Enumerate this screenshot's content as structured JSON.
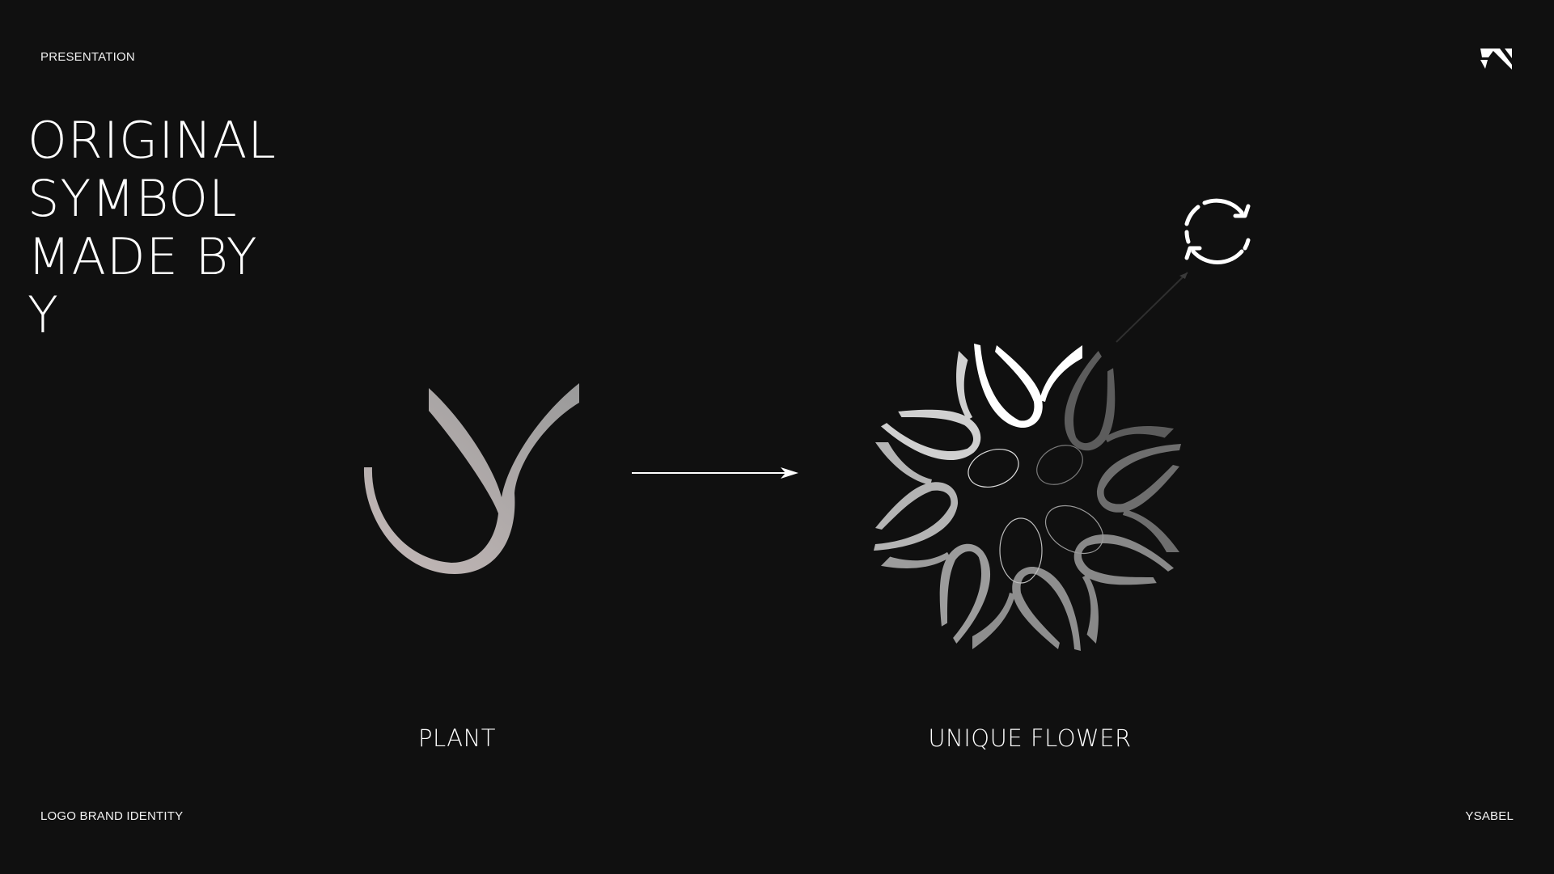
{
  "header": {
    "section_label": "PRESENTATION",
    "brand_icon": "angular-brand-logo-icon"
  },
  "headline": {
    "lines": [
      "ORIGINAL",
      "SYMBOL",
      "MADE BY",
      "Y"
    ]
  },
  "illustration": {
    "left_caption": "PLANT",
    "right_caption": "UNIQUE FLOWER",
    "left_icon": "plant-symbol-icon",
    "connector_icon": "arrow-right-icon",
    "right_icon": "flower-symbol-icon",
    "rotate_icon": "refresh-rotate-icon"
  },
  "footer": {
    "left_label": "LOGO BRAND IDENTITY",
    "right_label": "YSABEL"
  },
  "colors": {
    "background": "#101010",
    "foreground": "#ffffff",
    "petal_gray": "#8a8a8a",
    "plant_gradient_start": "#c0bcbc",
    "plant_gradient_end": "#8c8c8c"
  }
}
